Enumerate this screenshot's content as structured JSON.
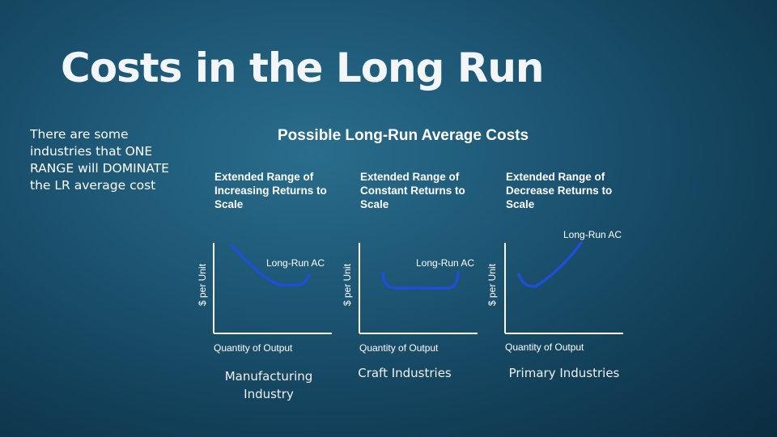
{
  "slide": {
    "title": "Costs in the Long Run",
    "side_note": "There are some industries that ONE RANGE will DOMINATE the LR average cost"
  },
  "diagram": {
    "title": "Possible Long-Run Average Costs",
    "panels": [
      {
        "range_label": "Extended Range of Increasing Returns to Scale",
        "curve_label": "Long-Run AC",
        "y_axis_label": "$ per Unit",
        "x_axis_label": "Quantity of Output",
        "industry": "Manufacturing Industry"
      },
      {
        "range_label": "Extended Range of Constant Returns to Scale",
        "curve_label": "Long-Run AC",
        "y_axis_label": "$ per Unit",
        "x_axis_label": "Quantity of Output",
        "industry": "Craft Industries"
      },
      {
        "range_label": "Extended Range of Decrease Returns to Scale",
        "curve_label": "Long-Run AC",
        "y_axis_label": "$ per Unit",
        "x_axis_label": "Quantity of Output",
        "industry": "Primary Industries"
      }
    ]
  },
  "colors": {
    "curve": "#1f4fd6",
    "axis": "#ffffff"
  }
}
